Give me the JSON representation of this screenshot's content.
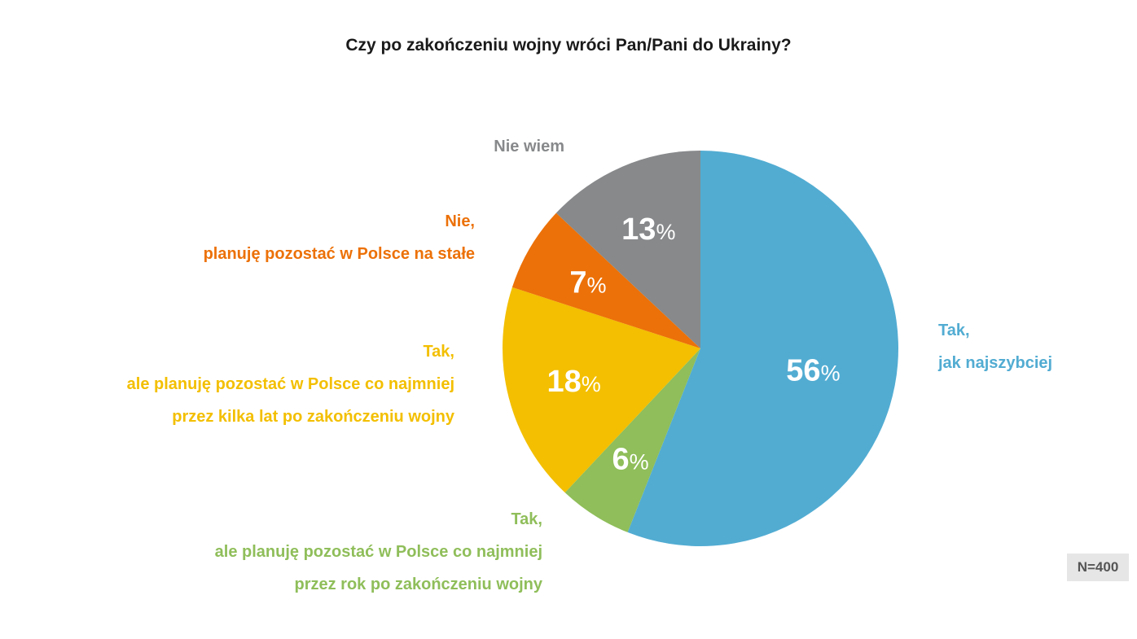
{
  "title": "Czy po zakończeniu wojny wróci Pan/Pani do Ukrainy?",
  "note": "N=400",
  "chart_data": {
    "type": "pie",
    "title": "Czy po zakończeniu wojny wróci Pan/Pani do Ukrainy?",
    "unit": "%",
    "slices": [
      {
        "label_lines": [
          "Tak,",
          "jak najszybciej"
        ],
        "value": 56,
        "color": "#52acd2"
      },
      {
        "label_lines": [
          "Tak,",
          "ale planuję pozostać w Polsce co najmniej",
          "przez rok po zakończeniu wojny"
        ],
        "value": 6,
        "color": "#8fbe5a"
      },
      {
        "label_lines": [
          "Tak,",
          "ale planuję pozostać w Polsce co najmniej",
          "przez kilka lat po zakończeniu wojny"
        ],
        "value": 18,
        "color": "#f3bf00"
      },
      {
        "label_lines": [
          "Nie,",
          "planuję pozostać w Polsce na stałe"
        ],
        "value": 7,
        "color": "#ec7108"
      },
      {
        "label_lines": [
          "Nie wiem"
        ],
        "value": 13,
        "color": "#87898b"
      }
    ]
  }
}
